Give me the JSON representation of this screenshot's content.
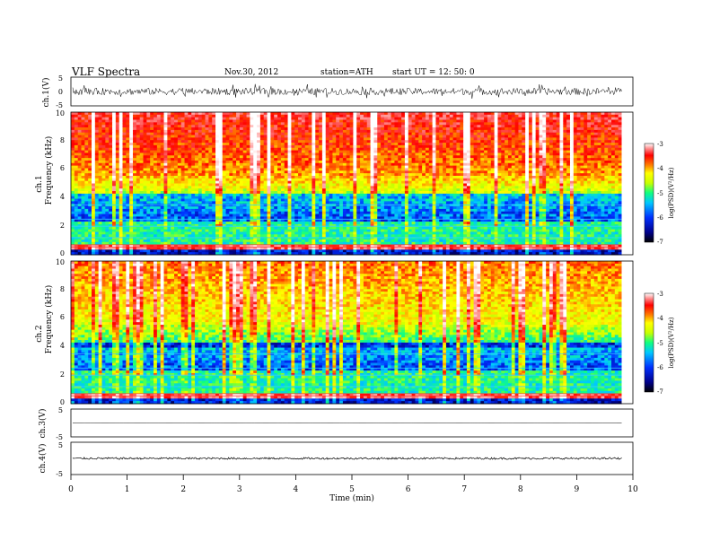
{
  "header": {
    "title": "VLF  Spectra",
    "date": "Nov.30, 2012",
    "station": "station=ATH",
    "start": "start  UT  =    12: 50: 0"
  },
  "chart_data": {
    "type": "heatmap",
    "xlabel": "Time  (min)",
    "xlim": [
      0,
      10
    ],
    "xticks": [
      "0",
      "1",
      "2",
      "3",
      "4",
      "5",
      "6",
      "7",
      "8",
      "9",
      "10"
    ],
    "data_end_min": 9.8,
    "panels": [
      {
        "id": "ch1-wave",
        "type": "line",
        "ylabel": "ch.1(V)",
        "ylim": [
          -5,
          5
        ],
        "yticks": [
          "5",
          "0",
          "-5"
        ],
        "amplitude": 1.2
      },
      {
        "id": "ch1-spec",
        "type": "heatmap",
        "ylabel_top": "ch.1",
        "ylabel": "Frequency  (kHz)",
        "ylim": [
          0,
          10
        ],
        "yticks": [
          "0",
          "2",
          "4",
          "6",
          "8",
          "10"
        ],
        "colorbar": {
          "label": "log(PSD)(V²/Hz)",
          "range": [
            -7,
            -3
          ],
          "ticks": [
            "-3",
            "-4",
            "-5",
            "-6",
            "-7"
          ]
        }
      },
      {
        "id": "ch2-spec",
        "type": "heatmap",
        "ylabel_top": "ch.2",
        "ylabel": "Frequency  (kHz)",
        "ylim": [
          0,
          10
        ],
        "yticks": [
          "0",
          "2",
          "4",
          "6",
          "8",
          "10"
        ],
        "colorbar": {
          "label": "log(PSD)(V²/Hz)",
          "range": [
            -7,
            -3
          ],
          "ticks": [
            "-3",
            "-4",
            "-5",
            "-6",
            "-7"
          ]
        }
      },
      {
        "id": "ch3-wave",
        "type": "line",
        "ylabel": "ch.3(V)",
        "ylim": [
          -5,
          5
        ],
        "yticks": [
          "5",
          "-5"
        ],
        "amplitude": 0.05
      },
      {
        "id": "ch4-wave",
        "type": "line",
        "ylabel": "ch.4(V)",
        "ylim": [
          -5,
          5
        ],
        "yticks": [
          "5",
          "-5"
        ],
        "amplitude": 0.3
      }
    ]
  },
  "colors": {
    "colormap": [
      "#000000",
      "#00008b",
      "#0030ff",
      "#00c8ff",
      "#10ff80",
      "#c8ff00",
      "#ffff00",
      "#ff8000",
      "#ff0000",
      "#ff9090",
      "#ffffff"
    ]
  }
}
